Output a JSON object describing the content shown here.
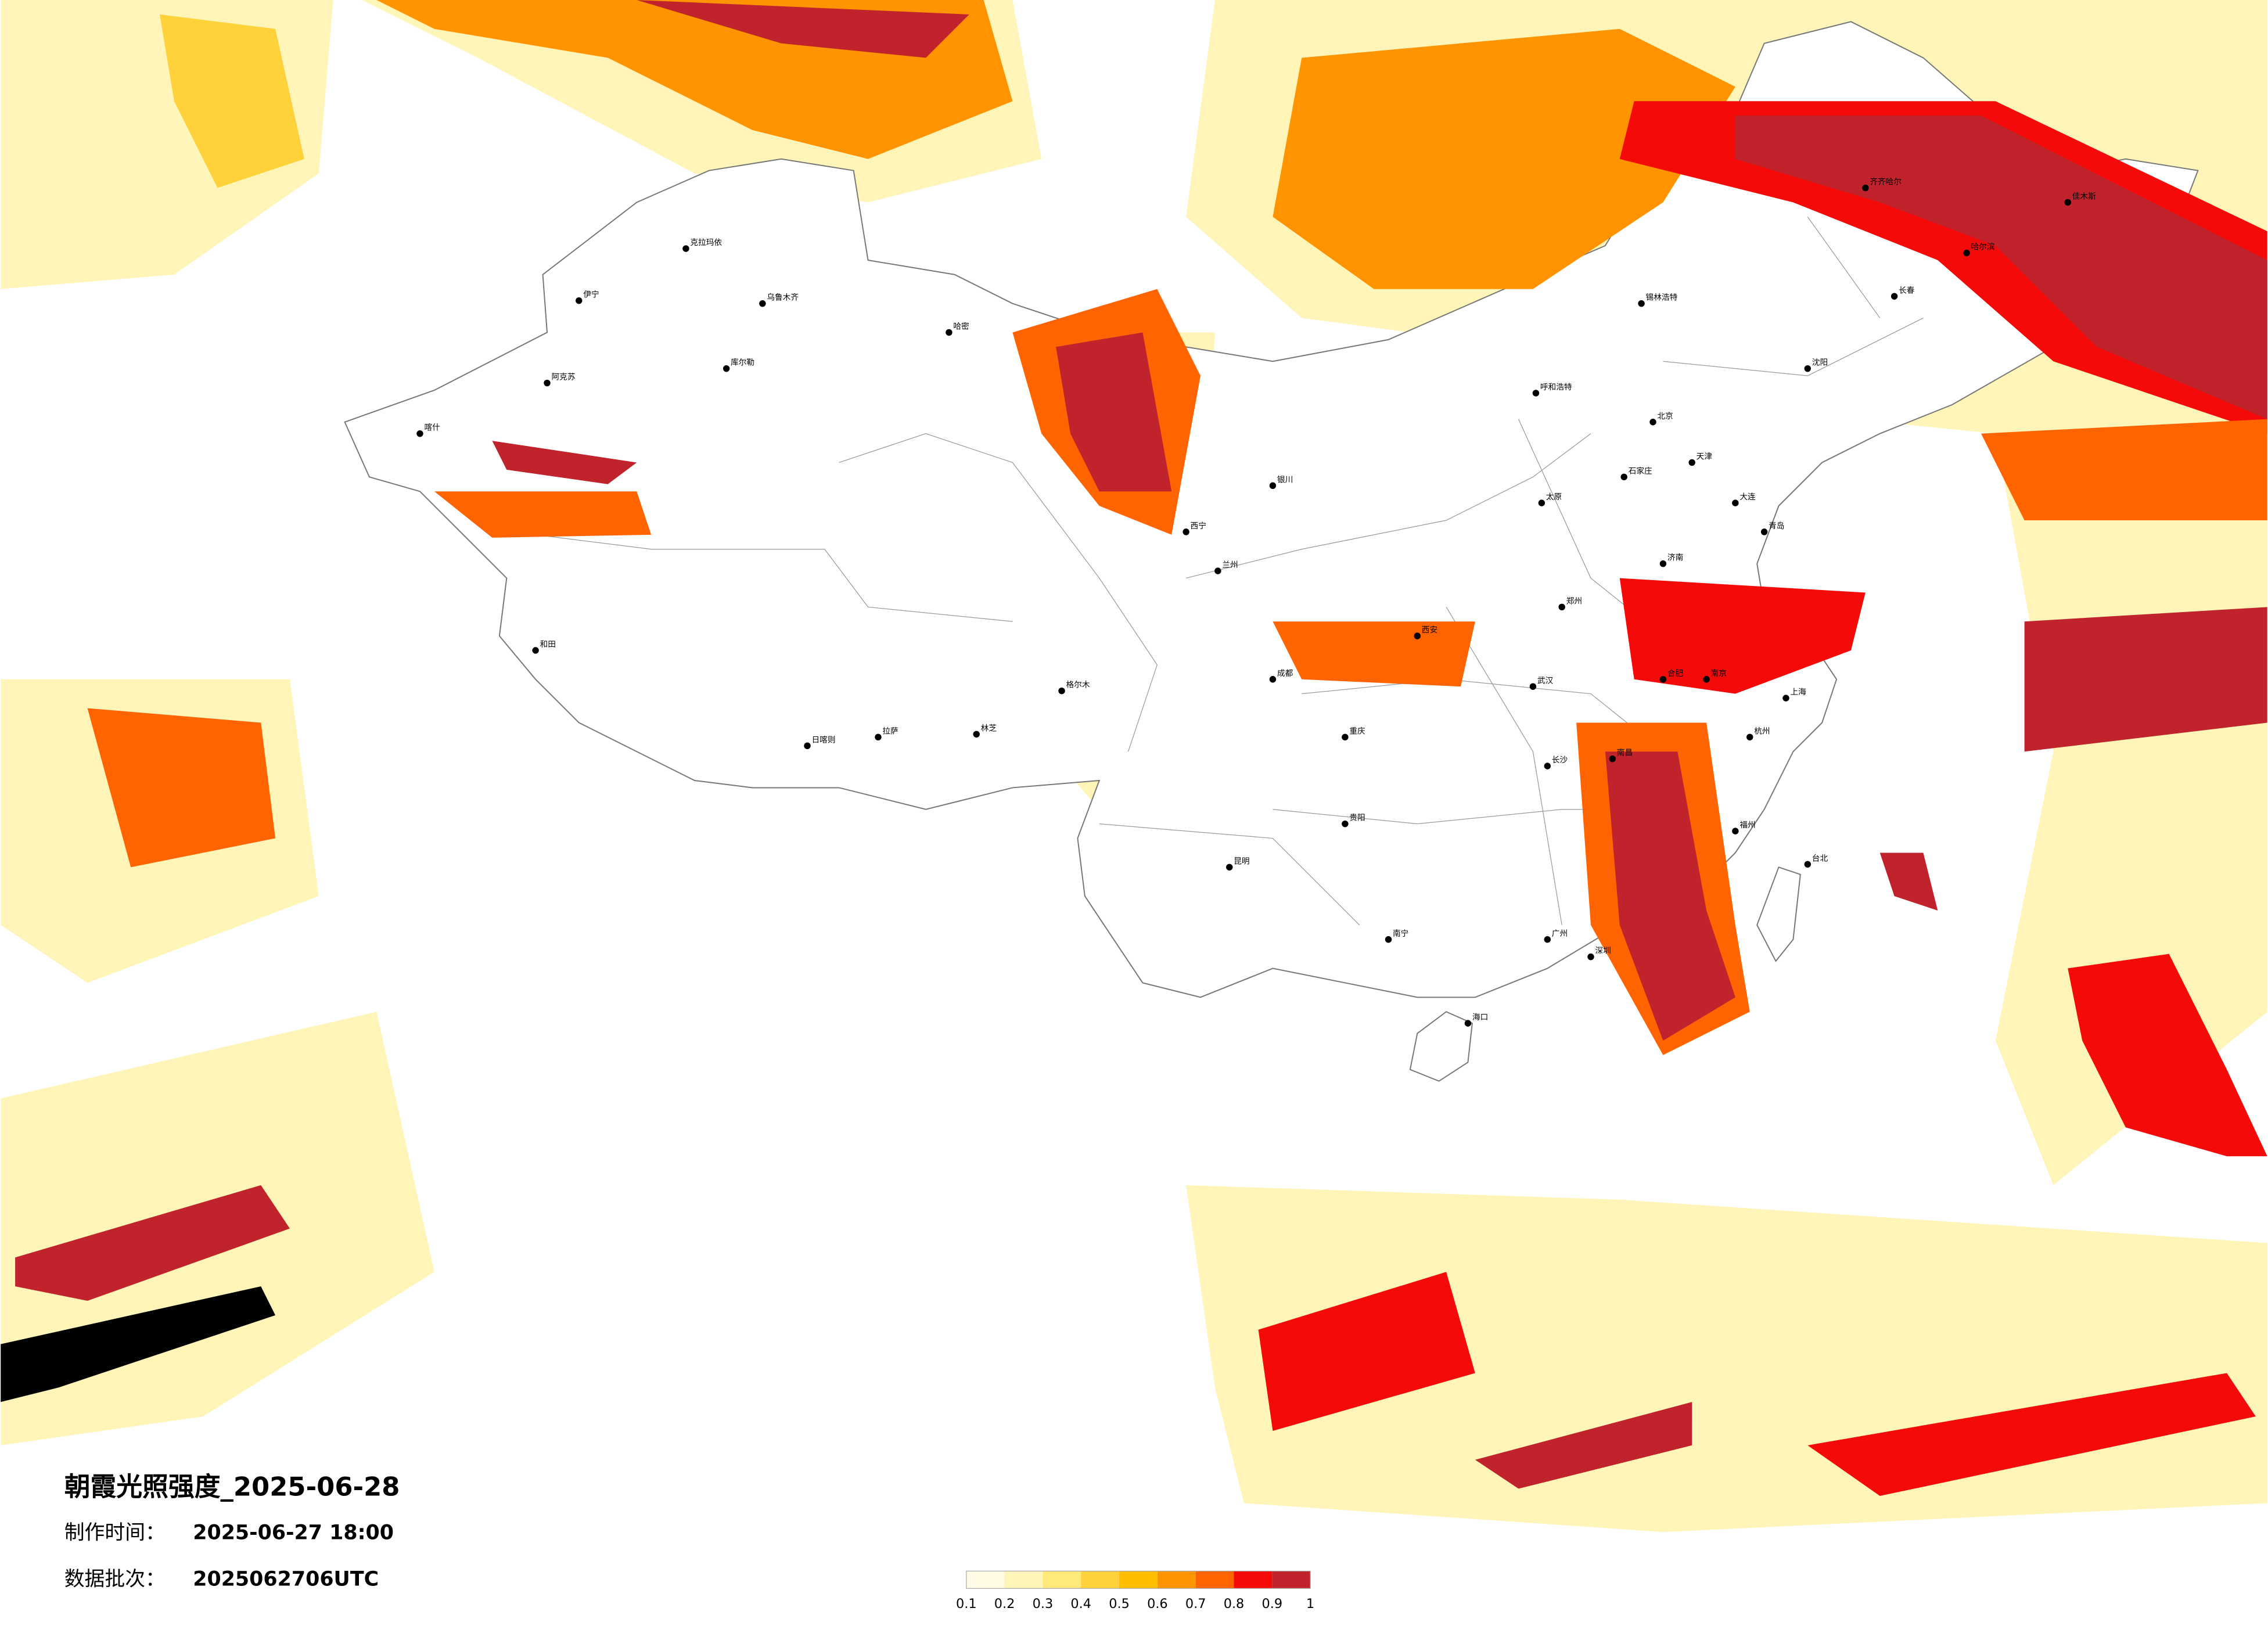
{
  "title": "朝霞光照强度_2025-06-28",
  "info": [
    {
      "label": "制作时间：",
      "value": "2025-06-27 18:00"
    },
    {
      "label": "数据批次：",
      "value": "2025062706UTC"
    }
  ],
  "colorbar": {
    "ticks": [
      0.1,
      0.2,
      0.3,
      0.4,
      0.5,
      0.6,
      0.7,
      0.8,
      0.9,
      1
    ],
    "colors": [
      "#fffbe4",
      "#fff5b8",
      "#ffe97a",
      "#ffd23c",
      "#ffbd00",
      "#ff9400",
      "#ff6400",
      "#f50a0a",
      "#c0232b"
    ]
  },
  "cities": [
    "克拉玛依",
    "乌鲁木齐",
    "伊宁",
    "阿克苏",
    "喀什",
    "和田",
    "哈密",
    "库尔勒",
    "格尔木",
    "拉萨",
    "日喀则",
    "林芝",
    "西宁",
    "兰州",
    "银川",
    "呼和浩特",
    "北京",
    "天津",
    "石家庄",
    "太原",
    "西安",
    "郑州",
    "济南",
    "青岛",
    "南京",
    "上海",
    "杭州",
    "合肥",
    "武汉",
    "长沙",
    "南昌",
    "福州",
    "台北",
    "广州",
    "深圳",
    "南宁",
    "海口",
    "贵阳",
    "昆明",
    "成都",
    "重庆",
    "沈阳",
    "长春",
    "哈尔滨",
    "大连",
    "齐齐哈尔",
    "佳木斯",
    "锡林浩特"
  ]
}
